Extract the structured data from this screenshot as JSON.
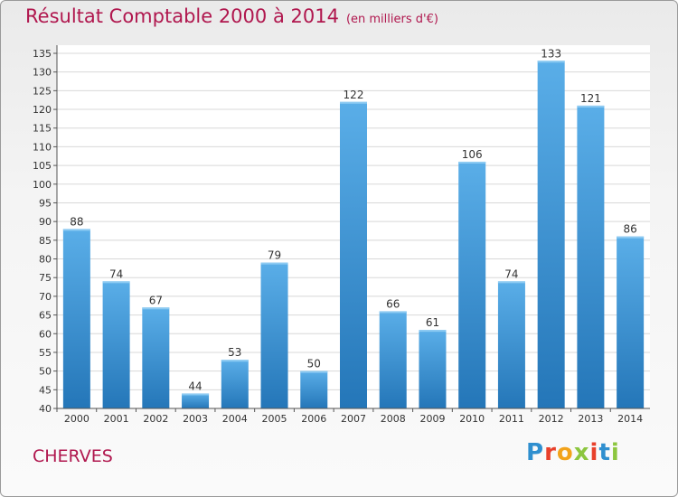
{
  "title": "Résultat Comptable 2000 à 2014",
  "unit": "(en milliers d'€)",
  "commune": "CHERVES",
  "logo": {
    "letters": [
      "P",
      "r",
      "o",
      "x",
      "i",
      "t",
      "i"
    ],
    "colors": [
      "#2f8fcf",
      "#e8402b",
      "#f2a31b",
      "#8cc63f",
      "#e8402b",
      "#2f8fcf",
      "#8cc63f"
    ]
  },
  "colors": {
    "title": "#b0174e",
    "bar_top": "#5aaee8",
    "bar_bottom": "#2476b8",
    "grid": "#d8d8d8"
  },
  "chart_data": {
    "type": "bar",
    "title": "Résultat Comptable 2000 à 2014",
    "categories": [
      "2000",
      "2001",
      "2002",
      "2003",
      "2004",
      "2005",
      "2006",
      "2007",
      "2008",
      "2009",
      "2010",
      "2011",
      "2012",
      "2013",
      "2014"
    ],
    "values": [
      88,
      74,
      67,
      44,
      53,
      79,
      50,
      122,
      66,
      61,
      106,
      74,
      133,
      121,
      86
    ],
    "ylim": [
      40,
      135
    ],
    "yticks": [
      40,
      45,
      50,
      55,
      60,
      65,
      70,
      75,
      80,
      85,
      90,
      95,
      100,
      105,
      110,
      115,
      120,
      125,
      130,
      135
    ],
    "grid": true,
    "data_labels": true
  }
}
